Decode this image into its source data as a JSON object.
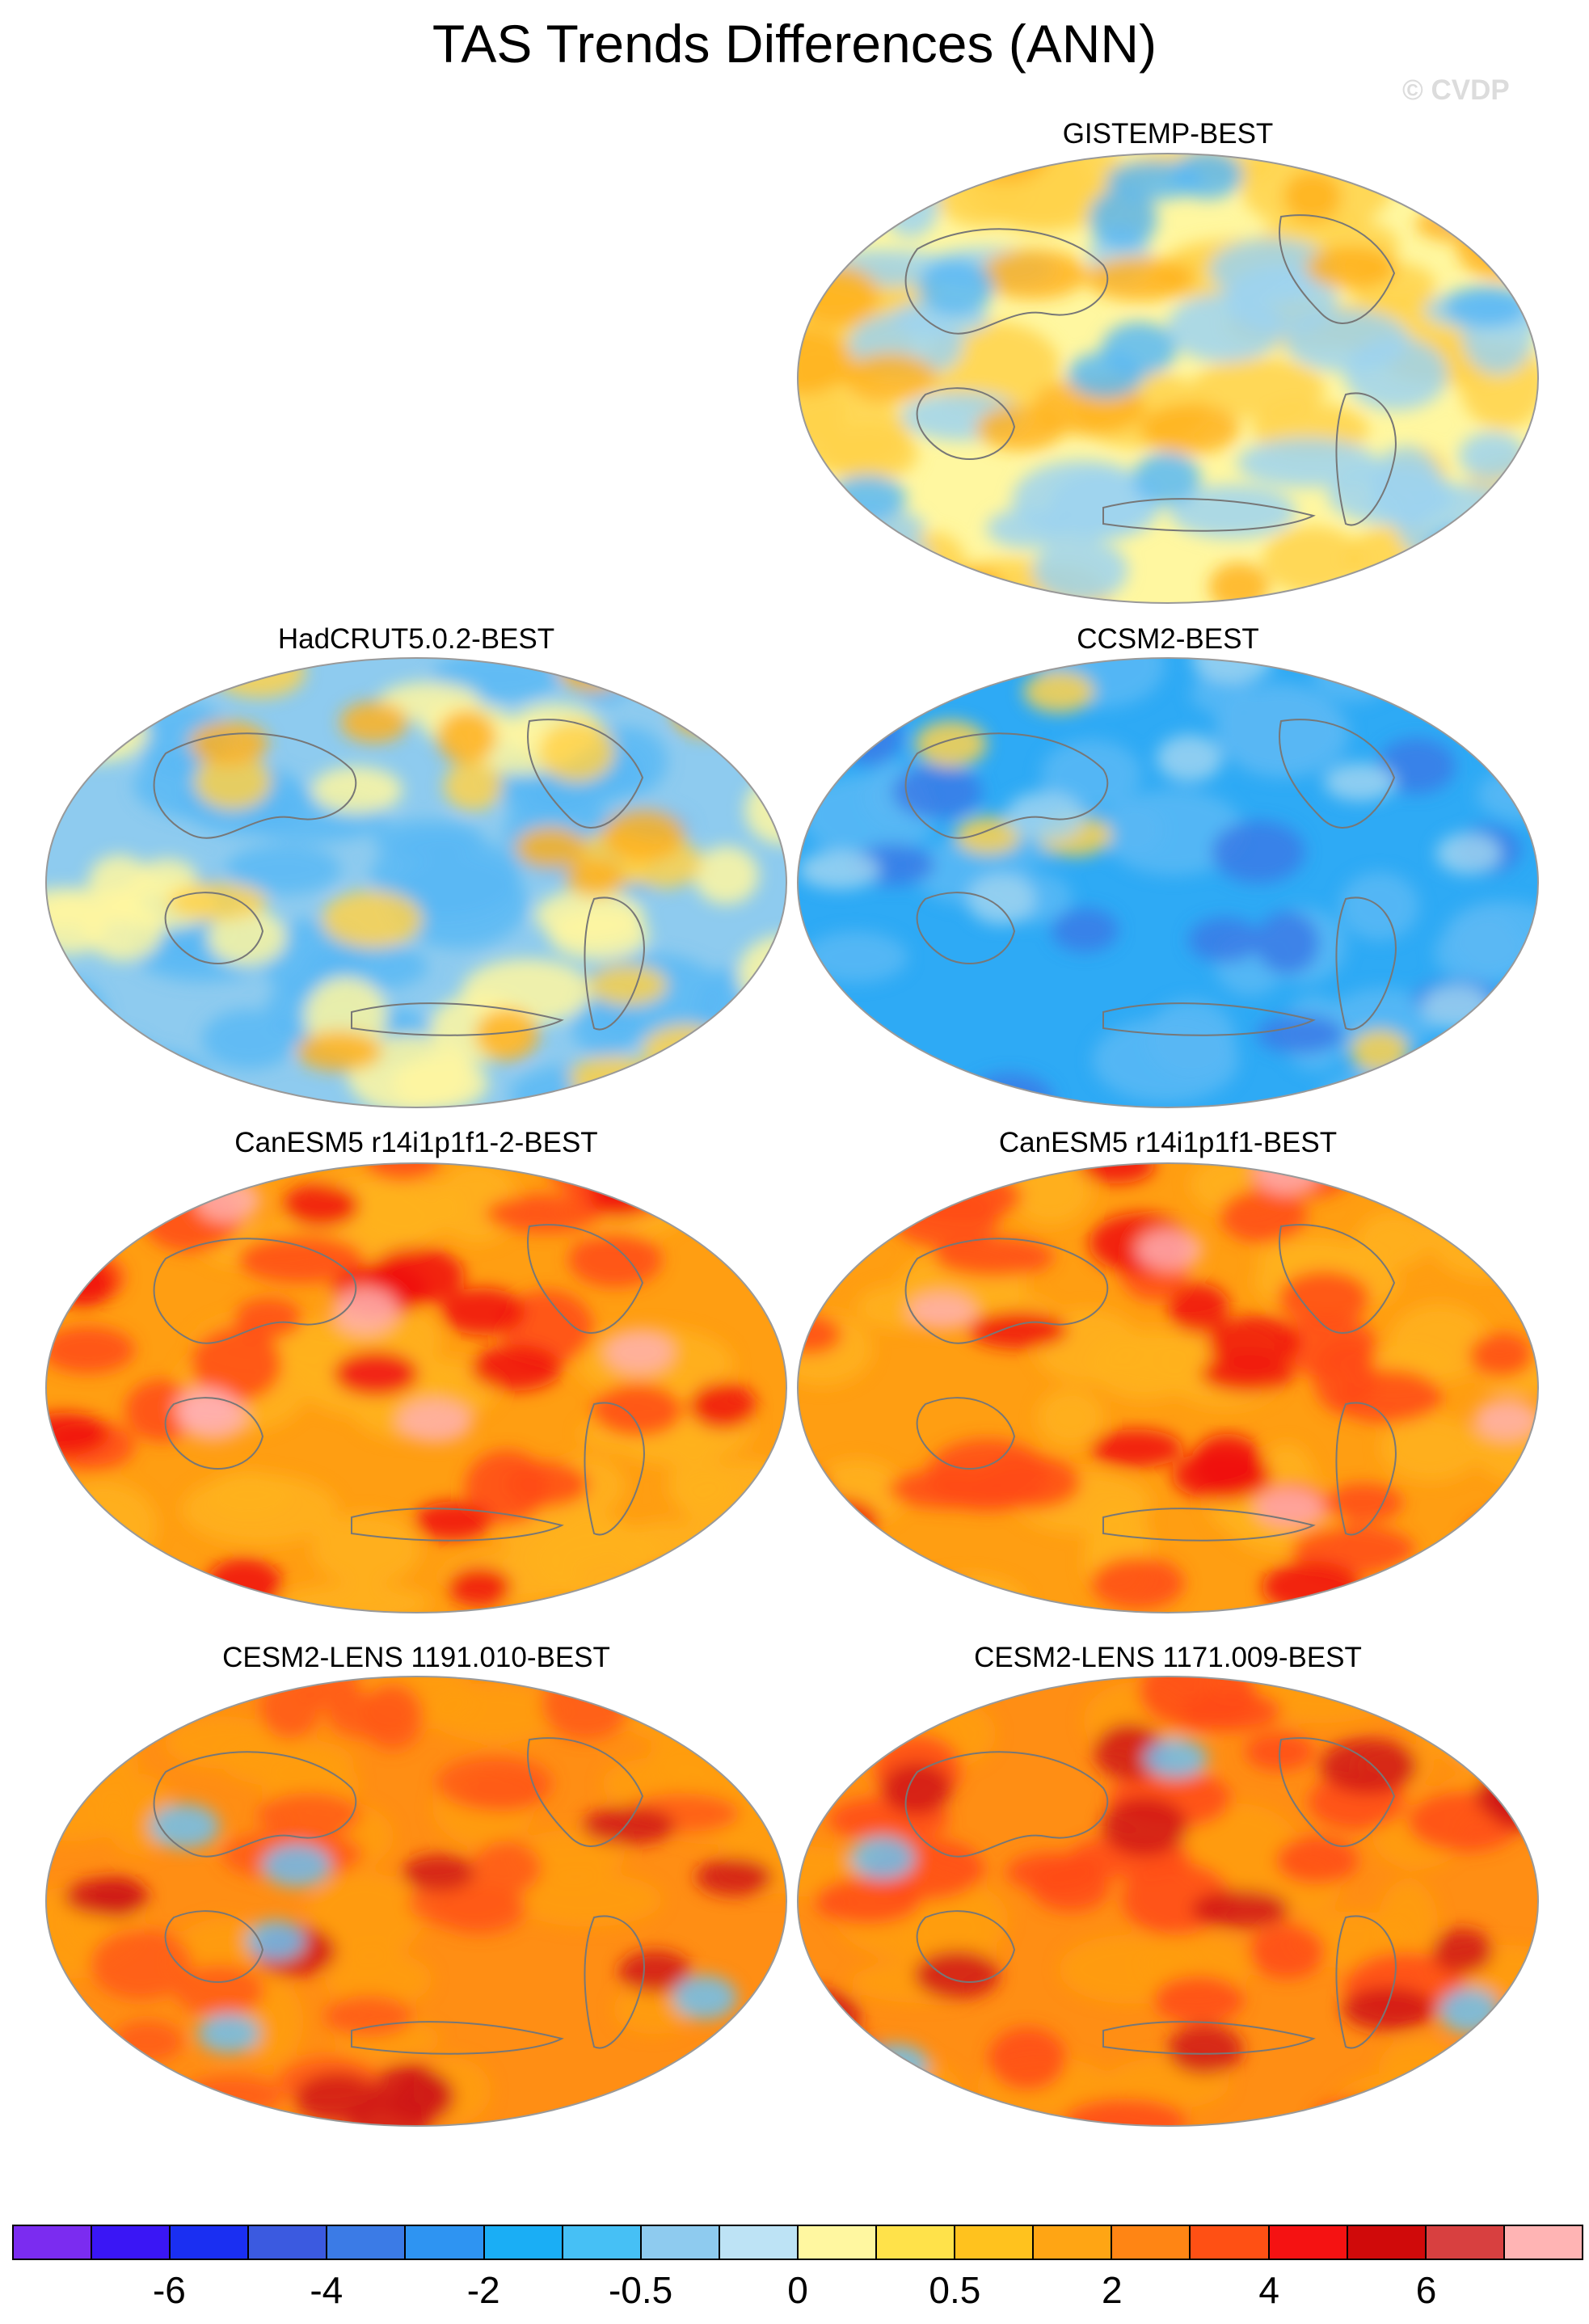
{
  "title": "TAS Trends Differences (ANN)",
  "watermark": "© CVDP",
  "panels": [
    {
      "id": "gistemp",
      "label": "GISTEMP-BEST",
      "base": "#fff7a0",
      "blobs": [
        {
          "c": "#ffd24a",
          "r": 0.9
        },
        {
          "c": "#9ed4f0",
          "r": 0.7
        },
        {
          "c": "#ffb21e",
          "r": 0.45
        },
        {
          "c": "#5ab8f5",
          "r": 0.35
        }
      ]
    },
    {
      "id": "hadcrut",
      "label": "HadCRUT5.0.2-BEST",
      "base": "#8ecbef",
      "blobs": [
        {
          "c": "#5ab8f5",
          "r": 0.8
        },
        {
          "c": "#fff7a0",
          "r": 0.6
        },
        {
          "c": "#ffd24a",
          "r": 0.35
        },
        {
          "c": "#ffb21e",
          "r": 0.25
        }
      ]
    },
    {
      "id": "ccsm2",
      "label": "CCSM2-BEST",
      "base": "#2eaaf5",
      "blobs": [
        {
          "c": "#5ab8f5",
          "r": 0.7
        },
        {
          "c": "#3b7be6",
          "r": 0.35
        },
        {
          "c": "#ffd24a",
          "r": 0.15
        },
        {
          "c": "#9ed4f0",
          "r": 0.2
        }
      ]
    },
    {
      "id": "canesm-2",
      "label": "CanESM5 r14i1p1f1-2-BEST",
      "base": "#ff9e12",
      "blobs": [
        {
          "c": "#ffb21e",
          "r": 0.8
        },
        {
          "c": "#ff4a14",
          "r": 0.55
        },
        {
          "c": "#f01010",
          "r": 0.35
        },
        {
          "c": "#ffb0b0",
          "r": 0.15
        }
      ]
    },
    {
      "id": "canesm",
      "label": "CanESM5 r14i1p1f1-BEST",
      "base": "#ff9e12",
      "blobs": [
        {
          "c": "#ffb21e",
          "r": 0.8
        },
        {
          "c": "#ff4a14",
          "r": 0.55
        },
        {
          "c": "#f01010",
          "r": 0.35
        },
        {
          "c": "#ffb0b0",
          "r": 0.15
        }
      ]
    },
    {
      "id": "cesm1191",
      "label": "CESM2-LENS 1191.010-BEST",
      "base": "#ff8e14",
      "blobs": [
        {
          "c": "#ff9e12",
          "r": 0.8
        },
        {
          "c": "#ff5a14",
          "r": 0.5
        },
        {
          "c": "#d01818",
          "r": 0.3
        },
        {
          "c": "#6cc2f5",
          "r": 0.12
        }
      ]
    },
    {
      "id": "cesm1171",
      "label": "CESM2-LENS 1171.009-BEST",
      "base": "#ff8e14",
      "blobs": [
        {
          "c": "#ff9e12",
          "r": 0.8
        },
        {
          "c": "#ff4a14",
          "r": 0.55
        },
        {
          "c": "#d01818",
          "r": 0.35
        },
        {
          "c": "#6cc2f5",
          "r": 0.12
        }
      ]
    }
  ],
  "colorbar": {
    "colors": [
      "#7b2cf0",
      "#3a16f5",
      "#1a2ff2",
      "#3b5ae0",
      "#3b7be6",
      "#2e94f2",
      "#1aaef5",
      "#46c0f5",
      "#8ecbef",
      "#bde3f5",
      "#fff7a0",
      "#ffe24a",
      "#ffc21e",
      "#ffa514",
      "#ff8514",
      "#ff5014",
      "#f51212",
      "#d00a0a",
      "#d84040",
      "#ffb4b4"
    ],
    "labels": [
      {
        "text": "-6",
        "boundary": 2
      },
      {
        "text": "-4",
        "boundary": 4
      },
      {
        "text": "-2",
        "boundary": 6
      },
      {
        "text": "-0.5",
        "boundary": 8
      },
      {
        "text": "0",
        "boundary": 10
      },
      {
        "text": "0.5",
        "boundary": 12
      },
      {
        "text": "2",
        "boundary": 14
      },
      {
        "text": "4",
        "boundary": 16
      },
      {
        "text": "6",
        "boundary": 18
      }
    ]
  }
}
